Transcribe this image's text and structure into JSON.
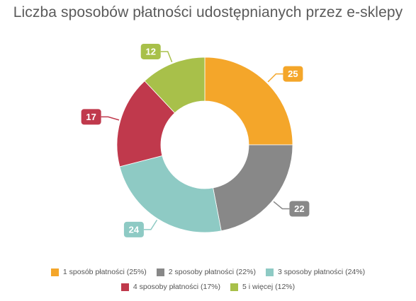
{
  "chart_data": {
    "type": "pie",
    "title": "Liczba sposobów płatności udostępnianych przez e-sklepy",
    "donut": true,
    "legend_position": "bottom",
    "slices": [
      {
        "label": "1 sposób płatności (25%)",
        "value": 25,
        "data_label": "25",
        "color": "#F4A62A"
      },
      {
        "label": "2 sposoby płatności (22%)",
        "value": 22,
        "data_label": "22",
        "color": "#888888"
      },
      {
        "label": "3 sposoby płatności (24%)",
        "value": 24,
        "data_label": "24",
        "color": "#8ECAC4"
      },
      {
        "label": "4 sposoby płatności (17%)",
        "value": 17,
        "data_label": "17",
        "color": "#C0394C"
      },
      {
        "label": "5 i więcej (12%)",
        "value": 12,
        "data_label": "12",
        "color": "#A8C04A"
      }
    ]
  }
}
